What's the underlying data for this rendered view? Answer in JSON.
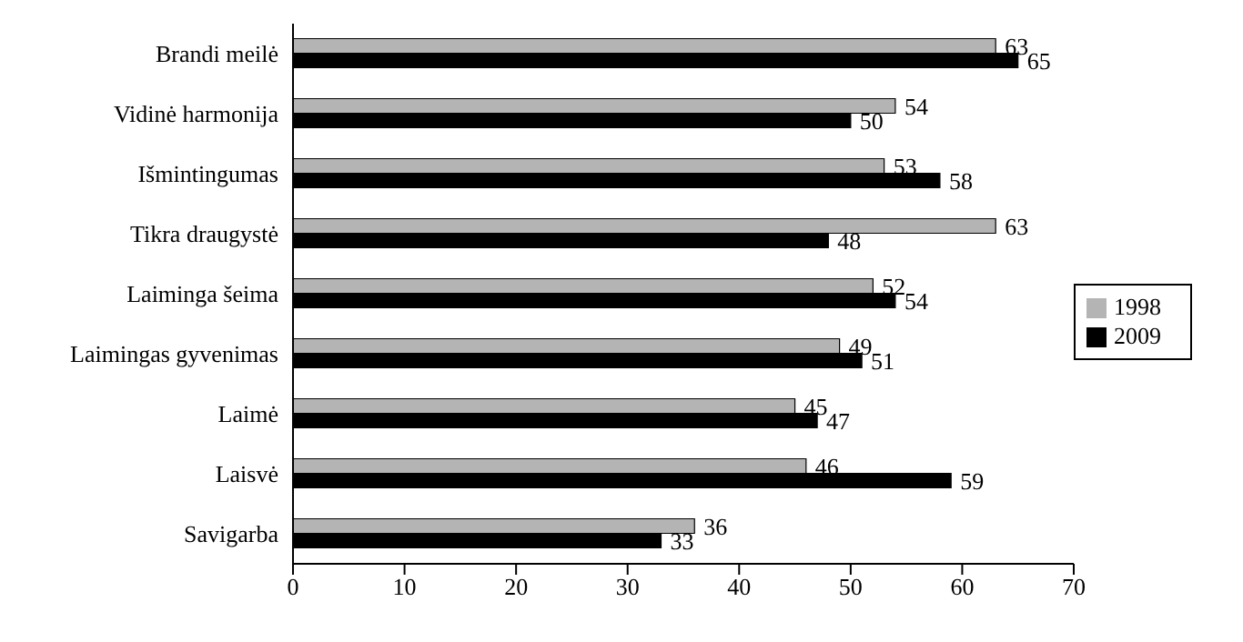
{
  "chart_data": {
    "type": "bar",
    "orientation": "horizontal",
    "categories": [
      "Brandi meilė",
      "Vidinė harmonija",
      "Išmintingumas",
      "Tikra draugystė",
      "Laiminga šeima",
      "Laimingas gyvenimas",
      "Laimė",
      "Laisvė",
      "Savigarba"
    ],
    "series": [
      {
        "name": "1998",
        "color": "#b4b4b4",
        "values": [
          63,
          54,
          53,
          63,
          52,
          49,
          45,
          46,
          36
        ]
      },
      {
        "name": "2009",
        "color": "#000000",
        "values": [
          65,
          50,
          58,
          48,
          54,
          51,
          47,
          59,
          33
        ]
      }
    ],
    "xlim": [
      0,
      70
    ],
    "xticks": [
      0,
      10,
      20,
      30,
      40,
      50,
      60,
      70
    ],
    "data_labels": true,
    "legend": "right",
    "grid": false
  }
}
